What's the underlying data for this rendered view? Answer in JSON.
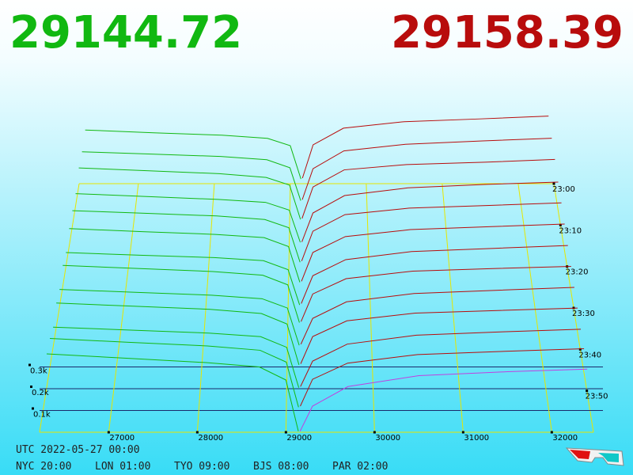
{
  "header": {
    "bid_price": 29144.72,
    "ask_price": 29158.39
  },
  "chart_data": {
    "type": "depth3d",
    "xlim": [
      26220,
      32470
    ],
    "xticks": [
      27000,
      28000,
      29000,
      30000,
      31000,
      32000
    ],
    "zlim": [
      0,
      400
    ],
    "zticks": [
      {
        "value": 100,
        "label": "0.1k"
      },
      {
        "value": 200,
        "label": "0.2k"
      },
      {
        "value": 300,
        "label": "0.3k"
      }
    ],
    "tlim": [
      -60,
      0
    ],
    "tticks": [
      {
        "value": -60,
        "label": "23:00"
      },
      {
        "value": -50,
        "label": "23:10"
      },
      {
        "value": -40,
        "label": "23:20"
      },
      {
        "value": -30,
        "label": "23:30"
      },
      {
        "value": -20,
        "label": "23:40"
      },
      {
        "value": -10,
        "label": "23:50"
      }
    ],
    "bid_prices": [
      26300,
      27200,
      28100,
      28700,
      29000,
      29140
    ],
    "ask_prices": [
      29160,
      29300,
      29700,
      30500,
      31500,
      32400
    ],
    "bid_color": "#11b811",
    "ask_color": "#b80c0c",
    "front_ask_color": "#c040e0",
    "grid_color": "#e6e600",
    "snapshots": [
      {
        "t": -60,
        "bids": [
          290,
          275,
          262,
          245,
          205,
          25
        ],
        "asks": [
          30,
          210,
          300,
          335,
          350,
          365
        ]
      },
      {
        "t": -55,
        "bids": [
          280,
          268,
          255,
          238,
          195,
          20
        ],
        "asks": [
          25,
          190,
          285,
          320,
          338,
          352
        ]
      },
      {
        "t": -50,
        "bids": [
          300,
          285,
          270,
          250,
          210,
          30
        ],
        "asks": [
          35,
          200,
          290,
          318,
          330,
          345
        ]
      },
      {
        "t": -45,
        "bids": [
          270,
          255,
          240,
          225,
          185,
          18
        ],
        "asks": [
          20,
          170,
          260,
          300,
          318,
          330
        ]
      },
      {
        "t": -40,
        "bids": [
          285,
          272,
          258,
          240,
          198,
          22
        ],
        "asks": [
          28,
          180,
          265,
          298,
          312,
          325
        ]
      },
      {
        "t": -35,
        "bids": [
          295,
          280,
          266,
          250,
          205,
          25
        ],
        "asks": [
          30,
          175,
          255,
          290,
          305,
          318
        ]
      },
      {
        "t": -30,
        "bids": [
          275,
          262,
          250,
          235,
          190,
          15
        ],
        "asks": [
          22,
          160,
          240,
          280,
          296,
          310
        ]
      },
      {
        "t": -25,
        "bids": [
          310,
          295,
          280,
          262,
          215,
          30
        ],
        "asks": [
          35,
          170,
          245,
          282,
          295,
          305
        ]
      },
      {
        "t": -20,
        "bids": [
          290,
          276,
          262,
          245,
          200,
          20
        ],
        "asks": [
          25,
          150,
          230,
          270,
          286,
          300
        ]
      },
      {
        "t": -15,
        "bids": [
          320,
          305,
          290,
          270,
          220,
          25
        ],
        "asks": [
          30,
          160,
          235,
          272,
          285,
          296
        ]
      },
      {
        "t": -10,
        "bids": [
          300,
          286,
          272,
          255,
          205,
          15
        ],
        "asks": [
          20,
          140,
          220,
          262,
          278,
          290
        ]
      },
      {
        "t": -5,
        "bids": [
          340,
          322,
          305,
          285,
          230,
          20
        ],
        "asks": [
          25,
          150,
          225,
          265,
          280,
          292
        ]
      },
      {
        "t": 0,
        "bids": [
          360,
          340,
          320,
          300,
          240,
          5
        ],
        "asks": [
          5,
          120,
          210,
          260,
          278,
          290
        ]
      }
    ]
  },
  "footer": {
    "utc": "UTC 2022-05-27 00:00",
    "zones": [
      "NYC 20:00",
      "LON 01:00",
      "TYO 09:00",
      "BJS 08:00",
      "PAR 02:00"
    ]
  }
}
